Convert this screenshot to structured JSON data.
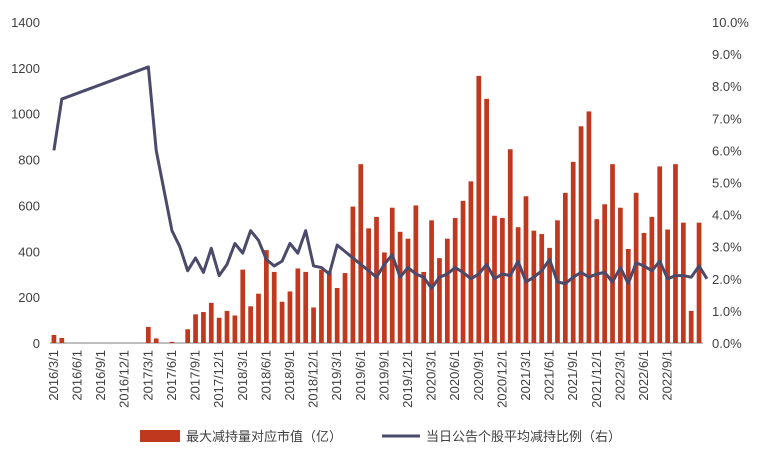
{
  "chart_data": {
    "type": "bar",
    "colors": {
      "bar": "#c0391f",
      "line": "#4b4a6b"
    },
    "legend": {
      "placement": "bottom",
      "bar_label": "最大减持量对应市值（亿）",
      "line_label": "当日公告个股平均减持比例（右）"
    },
    "y_left": {
      "min": 0,
      "max": 1400,
      "ticks": [
        "0",
        "200",
        "400",
        "600",
        "800",
        "1000",
        "1200",
        "1400"
      ]
    },
    "y_right": {
      "min": 0,
      "max": 0.1,
      "ticks": [
        "0.0%",
        "1.0%",
        "2.0%",
        "3.0%",
        "4.0%",
        "5.0%",
        "6.0%",
        "7.0%",
        "8.0%",
        "9.0%",
        "10.0%"
      ]
    },
    "x_start": "2016/3/1",
    "x_tick_labels": [
      "2016/3/1",
      "2016/6/1",
      "2016/9/1",
      "2016/12/1",
      "2017/3/1",
      "2017/6/1",
      "2017/9/1",
      "2017/12/1",
      "2018/3/1",
      "2018/6/1",
      "2018/9/1",
      "2018/12/1",
      "2019/3/1",
      "2019/6/1",
      "2019/9/1",
      "2019/12/1",
      "2020/3/1",
      "2020/6/1",
      "2020/9/1",
      "2020/12/1",
      "2021/3/1",
      "2021/6/1",
      "2021/9/1",
      "2021/12/1",
      "2022/3/1",
      "2022/6/1",
      "2022/9/1"
    ],
    "series": [
      {
        "name": "最大减持量对应市值（亿）",
        "axis": "left",
        "values": [
          35,
          22,
          0,
          0,
          0,
          0,
          0,
          0,
          0,
          0,
          0,
          0,
          70,
          20,
          0,
          5,
          0,
          60,
          125,
          135,
          175,
          110,
          140,
          120,
          320,
          160,
          215,
          405,
          310,
          180,
          225,
          325,
          310,
          155,
          320,
          315,
          240,
          305,
          595,
          780,
          500,
          550,
          395,
          590,
          485,
          455,
          600,
          310,
          535,
          370,
          455,
          545,
          620,
          705,
          1165,
          1065,
          555,
          545,
          845,
          505,
          640,
          490,
          475,
          415,
          535,
          655,
          790,
          945,
          1010,
          540,
          605,
          780,
          590,
          410,
          655,
          480,
          550,
          770,
          495,
          780,
          525,
          140,
          525
        ]
      },
      {
        "name": "当日公告个股平均减持比例（右）",
        "axis": "right",
        "points": [
          [
            0,
            0.06
          ],
          [
            1,
            0.076
          ],
          [
            12,
            0.086
          ],
          [
            13,
            0.06
          ],
          [
            15,
            0.035
          ],
          [
            16,
            0.03
          ],
          [
            17,
            0.0225
          ],
          [
            18,
            0.0265
          ],
          [
            19,
            0.022
          ],
          [
            20,
            0.0295
          ],
          [
            21,
            0.021
          ],
          [
            22,
            0.0245
          ],
          [
            23,
            0.031
          ],
          [
            24,
            0.028
          ],
          [
            25,
            0.035
          ],
          [
            26,
            0.032
          ],
          [
            27,
            0.026
          ],
          [
            28,
            0.024
          ],
          [
            29,
            0.0255
          ],
          [
            30,
            0.031
          ],
          [
            31,
            0.028
          ],
          [
            32,
            0.035
          ],
          [
            33,
            0.024
          ],
          [
            34,
            0.0235
          ],
          [
            35,
            0.0215
          ],
          [
            36,
            0.0305
          ],
          [
            37,
            0.0285
          ],
          [
            38,
            0.0265
          ],
          [
            39,
            0.0245
          ],
          [
            40,
            0.0225
          ],
          [
            41,
            0.0205
          ],
          [
            42,
            0.0245
          ],
          [
            43,
            0.0275
          ],
          [
            44,
            0.0205
          ],
          [
            45,
            0.0235
          ],
          [
            46,
            0.0215
          ],
          [
            47,
            0.0205
          ],
          [
            48,
            0.017
          ],
          [
            49,
            0.0205
          ],
          [
            50,
            0.0215
          ],
          [
            51,
            0.0235
          ],
          [
            52,
            0.022
          ],
          [
            53,
            0.02
          ],
          [
            54,
            0.0215
          ],
          [
            55,
            0.0245
          ],
          [
            56,
            0.02
          ],
          [
            57,
            0.0215
          ],
          [
            58,
            0.021
          ],
          [
            59,
            0.0255
          ],
          [
            60,
            0.019
          ],
          [
            61,
            0.0205
          ],
          [
            62,
            0.0225
          ],
          [
            63,
            0.026
          ],
          [
            64,
            0.019
          ],
          [
            65,
            0.0185
          ],
          [
            66,
            0.0205
          ],
          [
            67,
            0.022
          ],
          [
            68,
            0.0205
          ],
          [
            69,
            0.0215
          ],
          [
            70,
            0.022
          ],
          [
            71,
            0.019
          ],
          [
            72,
            0.0235
          ],
          [
            73,
            0.0185
          ],
          [
            74,
            0.025
          ],
          [
            75,
            0.024
          ],
          [
            76,
            0.0225
          ],
          [
            77,
            0.0255
          ],
          [
            78,
            0.02
          ],
          [
            79,
            0.021
          ],
          [
            80,
            0.021
          ],
          [
            81,
            0.0205
          ],
          [
            82,
            0.024
          ],
          [
            83,
            0.02
          ]
        ]
      }
    ]
  }
}
